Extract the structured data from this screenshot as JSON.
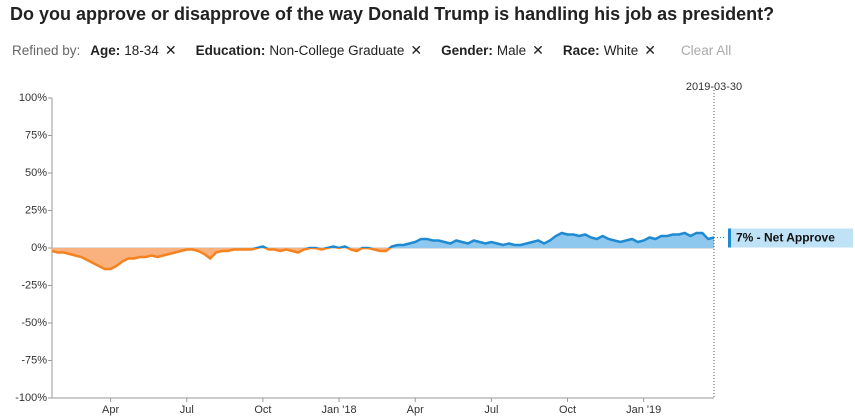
{
  "question": "Do you approve or disapprove of the way Donald Trump is handling his job as president?",
  "refined_by": "Refined by:",
  "filters": [
    {
      "label": "Age:",
      "value": "18-34"
    },
    {
      "label": "Education:",
      "value": "Non-College Graduate"
    },
    {
      "label": "Gender:",
      "value": "Male"
    },
    {
      "label": "Race:",
      "value": "White"
    }
  ],
  "clear_all": "Clear All",
  "chart_data": {
    "type": "line",
    "hover_date": "2019-03-30",
    "annotation": "7% - Net Approve",
    "ylim": [
      -100,
      100
    ],
    "yticks": [
      {
        "value": 100,
        "label": "100%"
      },
      {
        "value": 75,
        "label": "75%"
      },
      {
        "value": 50,
        "label": "50%"
      },
      {
        "value": 25,
        "label": "25%"
      },
      {
        "value": 0,
        "label": "0%"
      },
      {
        "value": -25,
        "label": "-25%"
      },
      {
        "value": -50,
        "label": "-50%"
      },
      {
        "value": -75,
        "label": "-75%"
      },
      {
        "value": -100,
        "label": "-100%"
      }
    ],
    "categories": [
      null,
      null,
      null,
      null,
      null,
      null,
      null,
      null,
      null,
      null,
      "Apr",
      null,
      null,
      null,
      null,
      null,
      null,
      null,
      null,
      null,
      null,
      null,
      null,
      "Jul",
      null,
      null,
      null,
      null,
      null,
      null,
      null,
      null,
      null,
      null,
      null,
      null,
      "Oct",
      null,
      null,
      null,
      null,
      null,
      null,
      null,
      null,
      null,
      null,
      null,
      null,
      "Jan '18",
      null,
      null,
      null,
      null,
      null,
      null,
      null,
      null,
      null,
      null,
      null,
      null,
      "Apr",
      null,
      null,
      null,
      null,
      null,
      null,
      null,
      null,
      null,
      null,
      null,
      null,
      "Jul",
      null,
      null,
      null,
      null,
      null,
      null,
      null,
      null,
      null,
      null,
      null,
      null,
      "Oct",
      null,
      null,
      null,
      null,
      null,
      null,
      null,
      null,
      null,
      null,
      null,
      null,
      "Jan '19",
      null,
      null,
      null,
      null,
      null,
      null,
      null,
      null,
      null,
      null,
      null,
      null
    ],
    "series": [
      {
        "name": "Net Approve",
        "color": "#1f8ad2",
        "fill_color": "#8ec8ee",
        "negative_color": "#f58220",
        "negative_fill_color": "#f9b27d",
        "values": [
          -2,
          -3,
          -3,
          -4,
          -5,
          -6,
          -8,
          -10,
          -12,
          -14,
          -14,
          -12,
          -9,
          -7,
          -7,
          -6,
          -6,
          -5,
          -6,
          -5,
          -4,
          -3,
          -2,
          -1,
          -1,
          -2,
          -4,
          -7,
          -3,
          -2,
          -2,
          -1,
          -1,
          -1,
          -1,
          0,
          1,
          -1,
          -1,
          -2,
          -1,
          -2,
          -3,
          -1,
          0,
          0,
          -1,
          0,
          1,
          0,
          1,
          -1,
          -2,
          0,
          0,
          -1,
          -2,
          -2,
          1,
          2,
          2,
          3,
          4,
          6,
          6,
          5,
          5,
          4,
          3,
          5,
          4,
          3,
          5,
          4,
          3,
          4,
          3,
          2,
          3,
          2,
          2,
          3,
          4,
          5,
          3,
          5,
          8,
          10,
          9,
          9,
          8,
          9,
          7,
          6,
          8,
          6,
          5,
          4,
          5,
          6,
          4,
          5,
          7,
          6,
          8,
          8,
          9,
          9,
          10,
          8,
          10,
          10,
          6,
          7
        ]
      }
    ]
  }
}
